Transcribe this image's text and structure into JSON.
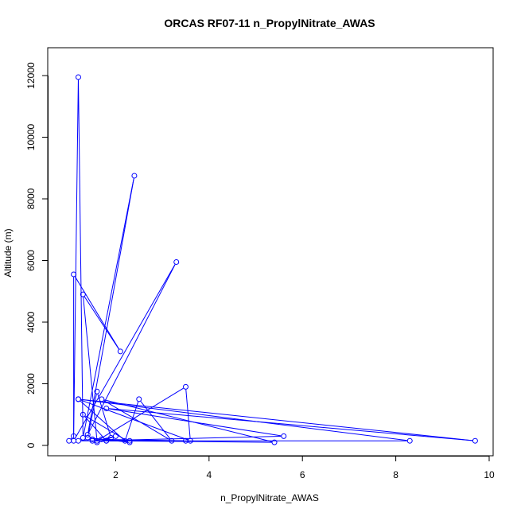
{
  "chart_data": {
    "type": "line",
    "title": "ORCAS RF07-11 n_PropylNitrate_AWAS",
    "xlabel": "n_PropylNitrate_AWAS",
    "ylabel": "Altitude (m)",
    "xlim": [
      0.8,
      10.0
    ],
    "ylim": [
      0,
      12000
    ],
    "xticks": [
      2,
      4,
      6,
      8,
      10
    ],
    "yticks": [
      0,
      2000,
      4000,
      6000,
      8000,
      10000,
      12000
    ],
    "markers": "open-circle",
    "grid": false,
    "legend": "none",
    "series": [
      {
        "color": "#0000ff",
        "points": [
          [
            1.0,
            150
          ],
          [
            1.1,
            300
          ],
          [
            1.2,
            11950
          ],
          [
            1.3,
            250
          ],
          [
            2.4,
            8750
          ],
          [
            1.4,
            350
          ],
          [
            3.3,
            5950
          ],
          [
            1.1,
            150
          ],
          [
            1.1,
            5550
          ],
          [
            2.1,
            3050
          ],
          [
            1.3,
            4900
          ],
          [
            1.6,
            150
          ],
          [
            3.5,
            1900
          ],
          [
            3.6,
            150
          ],
          [
            1.2,
            1500
          ],
          [
            9.7,
            150
          ],
          [
            1.8,
            1200
          ],
          [
            5.6,
            300
          ],
          [
            1.5,
            150
          ],
          [
            8.3,
            150
          ],
          [
            1.2,
            1500
          ],
          [
            2.2,
            150
          ],
          [
            2.5,
            1500
          ],
          [
            3.2,
            150
          ],
          [
            1.7,
            1500
          ],
          [
            5.4,
            100
          ],
          [
            1.8,
            150
          ],
          [
            1.3,
            1000
          ],
          [
            2.3,
            100
          ],
          [
            1.4,
            250
          ],
          [
            1.6,
            1750
          ],
          [
            1.9,
            250
          ],
          [
            1.6,
            100
          ],
          [
            2.0,
            300
          ],
          [
            1.7,
            200
          ],
          [
            2.3,
            150
          ],
          [
            1.2,
            150
          ],
          [
            1.5,
            200
          ],
          [
            3.5,
            150
          ],
          [
            1.8,
            150
          ]
        ]
      }
    ]
  }
}
